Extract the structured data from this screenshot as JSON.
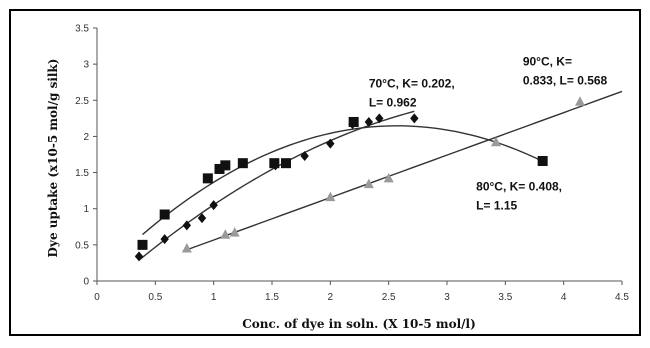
{
  "chart_data": {
    "type": "scatter",
    "title": "",
    "xlabel": "Conc. of dye in soln. (X 10-5 mol/l)",
    "ylabel": "Dye uptake (x10-5 mol/g silk)",
    "xlim": [
      0,
      4.5
    ],
    "ylim": [
      0,
      3.5
    ],
    "xticks": [
      "0",
      "0.5",
      "1",
      "1.5",
      "2",
      "2.5",
      "3",
      "3.5",
      "4",
      "4.5"
    ],
    "yticks": [
      "0",
      "0.5",
      "1",
      "1.5",
      "2",
      "2.5",
      "3",
      "3.5"
    ],
    "grid": false,
    "legend": "none",
    "series": [
      {
        "marker": "diamond",
        "color": "#111111",
        "x": [
          0.36,
          0.58,
          0.77,
          0.9,
          1.0,
          1.53,
          1.78,
          2.0,
          2.19,
          2.33,
          2.42,
          2.72
        ],
        "y": [
          0.34,
          0.58,
          0.77,
          0.87,
          1.05,
          1.6,
          1.73,
          1.9,
          2.17,
          2.2,
          2.25,
          2.25
        ],
        "trend": {
          "kind": "poly2",
          "x_range": [
            0.36,
            2.72
          ]
        }
      },
      {
        "marker": "square",
        "color": "#111111",
        "x": [
          0.39,
          0.58,
          0.95,
          1.05,
          1.1,
          1.25,
          1.52,
          1.62,
          2.2,
          3.82
        ],
        "y": [
          0.5,
          0.92,
          1.42,
          1.55,
          1.6,
          1.63,
          1.63,
          1.63,
          2.2,
          1.66
        ],
        "trend": {
          "kind": "poly2",
          "x_range": [
            0.39,
            3.82
          ]
        }
      },
      {
        "marker": "triangle",
        "color": "#9a9a9a",
        "x": [
          0.77,
          1.1,
          1.18,
          2.0,
          2.33,
          2.5,
          3.42,
          4.14
        ],
        "y": [
          0.45,
          0.64,
          0.67,
          1.16,
          1.34,
          1.42,
          1.92,
          2.48
        ],
        "trend": {
          "kind": "linear",
          "x_range": [
            0.77,
            4.5
          ]
        }
      }
    ],
    "annotations": [
      {
        "lines": [
          "70°C, K= 0.202,",
          "L= 0.962"
        ],
        "x": 2.33,
        "y": 2.68
      },
      {
        "lines": [
          "90°C, K=",
          "0.833, L= 0.568"
        ],
        "x": 3.65,
        "y": 2.98
      },
      {
        "lines": [
          "80°C, K= 0.408,",
          "L= 1.15"
        ],
        "x": 3.25,
        "y": 1.25
      }
    ]
  }
}
